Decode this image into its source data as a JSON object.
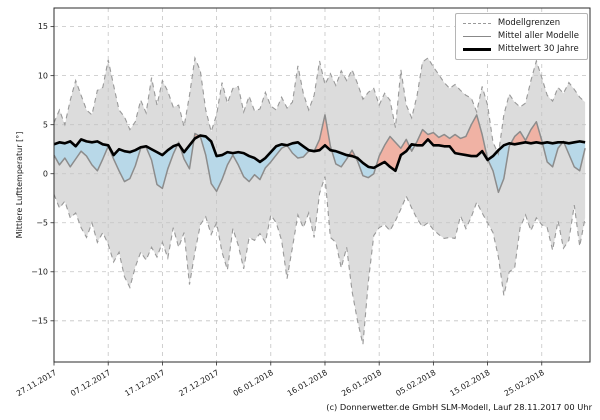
{
  "page": {
    "background": "#ffffff"
  },
  "caption": "(c) Donnerwetter.de GmbH SLM-Modell, Lauf 28.11.2017 00 Uhr",
  "chart_data": {
    "type": "line",
    "title": "",
    "xlabel": "",
    "ylabel": "Mittlere Lufttemperatur [°]",
    "ylim": [
      -19.2,
      16.9
    ],
    "xlim_days": [
      0,
      98.9
    ],
    "yticks": [
      15,
      10,
      5,
      0,
      -5,
      -10,
      -15
    ],
    "xticks": [
      {
        "day": 0,
        "label": "27.11.2017"
      },
      {
        "day": 10,
        "label": "07.12.2017"
      },
      {
        "day": 20,
        "label": "17.12.2017"
      },
      {
        "day": 30,
        "label": "27.12.2017"
      },
      {
        "day": 40,
        "label": "06.01.2018"
      },
      {
        "day": 50,
        "label": "16.01.2018"
      },
      {
        "day": 60,
        "label": "26.01.2018"
      },
      {
        "day": 70,
        "label": "05.02.2018"
      },
      {
        "day": 80,
        "label": "15.02.2018"
      },
      {
        "day": 90,
        "label": "25.02.2018"
      }
    ],
    "grid": "dashed",
    "legend": {
      "position": "top-right",
      "entries": [
        {
          "label": "Modellgrenzen",
          "style": "dashed-gray"
        },
        {
          "label": "Mittel aller Modelle",
          "style": "solid-gray"
        },
        {
          "label": "Mittelwert 30 Jahre",
          "style": "solid-black-thick"
        }
      ]
    },
    "colors": {
      "band_fill": "#dcdcdc",
      "band_edge": "#999999",
      "above_fill": "#f0b2a4",
      "below_fill": "#b8d8e8",
      "ensemble_line": "#8c8c8c",
      "climate_line": "#000000",
      "grid": "#c4c4c4",
      "spine": "#2b2b2b",
      "tick_text": "#1a1a1a"
    },
    "series": [
      {
        "name": "Modellgrenzen (obere Grenze)",
        "role": "upper",
        "values": [
          5.2,
          6.5,
          5.0,
          7.5,
          9.5,
          8.0,
          6.5,
          6.0,
          8.5,
          8.8,
          11.6,
          9.0,
          6.5,
          5.8,
          4.5,
          5.3,
          7.5,
          6.2,
          9.8,
          7.0,
          9.5,
          8.4,
          6.8,
          7.0,
          4.8,
          8.0,
          11.8,
          10.5,
          6.5,
          4.3,
          6.0,
          9.3,
          7.2,
          8.7,
          8.9,
          6.3,
          7.9,
          6.4,
          6.6,
          8.3,
          6.9,
          6.5,
          7.8,
          6.7,
          7.3,
          11.0,
          8.2,
          6.5,
          8.0,
          11.5,
          9.1,
          10.2,
          9.0,
          10.5,
          9.5,
          10.6,
          9.2,
          7.6,
          8.3,
          8.7,
          7.0,
          8.2,
          7.5,
          4.7,
          10.6,
          7.0,
          5.7,
          8.0,
          11.4,
          11.8,
          10.9,
          10.1,
          9.3,
          8.7,
          9.1,
          8.5,
          8.0,
          7.7,
          6.3,
          8.9,
          7.0,
          3.2,
          2.0,
          6.0,
          8.1,
          7.3,
          6.8,
          7.2,
          9.5,
          11.5,
          9.8,
          8.0,
          7.4,
          8.8,
          8.2,
          9.3,
          8.6,
          7.8,
          7.3
        ]
      },
      {
        "name": "Modellgrenzen (untere Grenze)",
        "role": "lower",
        "values": [
          -2.1,
          -3.5,
          -2.8,
          -4.5,
          -4.0,
          -5.5,
          -6.5,
          -5.0,
          -7.0,
          -6.0,
          -7.2,
          -9.0,
          -8.0,
          -10.5,
          -11.6,
          -9.5,
          -8.0,
          -8.8,
          -7.5,
          -8.5,
          -7.0,
          -8.6,
          -5.5,
          -7.5,
          -6.0,
          -11.3,
          -8.0,
          -5.2,
          -4.4,
          -6.2,
          -5.0,
          -8.0,
          -9.8,
          -5.6,
          -7.3,
          -9.7,
          -6.5,
          -6.8,
          -6.1,
          -7.0,
          -4.2,
          -5.0,
          -6.8,
          -10.7,
          -7.5,
          -4.2,
          -5.5,
          -4.0,
          -6.5,
          -2.0,
          -0.3,
          -6.5,
          -7.0,
          -9.6,
          -7.5,
          -12.0,
          -15.0,
          -17.4,
          -11.0,
          -6.3,
          -5.5,
          -5.2,
          -5.8,
          -4.8,
          -3.6,
          -2.3,
          -3.5,
          -4.6,
          -5.4,
          -5.0,
          -5.7,
          -6.2,
          -6.6,
          -6.5,
          -6.6,
          -4.3,
          -5.6,
          -4.4,
          -2.9,
          -4.0,
          -5.0,
          -6.0,
          -8.5,
          -12.4,
          -10.0,
          -9.6,
          -5.5,
          -4.2,
          -5.8,
          -4.5,
          -5.2,
          -5.5,
          -7.8,
          -4.8,
          -7.6,
          -6.8,
          -3.2,
          -7.4,
          -4.5
        ]
      },
      {
        "name": "Mittel aller Modelle",
        "role": "ensemble_mean",
        "values": [
          1.9,
          0.9,
          1.6,
          0.7,
          1.5,
          2.3,
          1.8,
          0.9,
          0.3,
          1.5,
          2.8,
          1.5,
          0.3,
          -0.8,
          -0.5,
          0.8,
          2.6,
          2.7,
          1.4,
          -1.1,
          -1.5,
          0.5,
          2.0,
          3.2,
          1.5,
          0.5,
          4.1,
          3.8,
          1.9,
          -1.0,
          -1.8,
          -0.6,
          0.9,
          1.9,
          0.9,
          -0.3,
          -0.8,
          -0.1,
          -0.6,
          0.6,
          1.2,
          1.9,
          2.6,
          2.9,
          2.1,
          1.6,
          1.7,
          2.3,
          2.3,
          3.5,
          6.0,
          2.8,
          1.0,
          0.7,
          1.5,
          2.4,
          1.3,
          -0.2,
          -0.4,
          0.0,
          1.8,
          2.9,
          3.8,
          3.2,
          2.6,
          3.5,
          2.3,
          3.3,
          4.5,
          4.0,
          4.2,
          3.7,
          4.0,
          3.6,
          4.0,
          3.6,
          3.8,
          5.0,
          6.0,
          4.0,
          1.5,
          0.3,
          -1.9,
          -0.5,
          2.8,
          3.8,
          4.3,
          3.4,
          4.5,
          5.3,
          3.4,
          1.2,
          0.7,
          2.6,
          3.3,
          2.0,
          0.7,
          0.3,
          2.6
        ]
      },
      {
        "name": "Mittelwert 30 Jahre",
        "role": "climate_mean",
        "values": [
          3.0,
          3.2,
          3.1,
          3.3,
          2.8,
          3.5,
          3.3,
          3.2,
          3.3,
          3.0,
          2.9,
          1.9,
          2.5,
          2.3,
          2.2,
          2.4,
          2.7,
          2.8,
          2.5,
          2.2,
          1.9,
          2.4,
          2.8,
          3.0,
          2.2,
          2.9,
          3.6,
          3.9,
          3.8,
          3.3,
          1.8,
          1.9,
          2.2,
          2.1,
          2.2,
          2.1,
          1.8,
          1.6,
          1.2,
          1.6,
          2.2,
          2.8,
          3.0,
          2.9,
          3.1,
          3.2,
          2.8,
          2.4,
          2.3,
          2.4,
          2.9,
          2.4,
          2.3,
          2.1,
          1.9,
          1.8,
          1.6,
          1.1,
          0.7,
          0.6,
          0.9,
          1.2,
          0.7,
          0.3,
          1.9,
          2.3,
          3.0,
          2.9,
          2.9,
          3.5,
          2.9,
          2.9,
          2.8,
          2.8,
          2.1,
          2.0,
          1.9,
          1.8,
          1.8,
          2.3,
          1.4,
          1.8,
          2.4,
          2.9,
          3.1,
          3.0,
          3.1,
          3.2,
          3.1,
          3.2,
          3.1,
          3.2,
          3.1,
          3.2,
          3.2,
          3.1,
          3.2,
          3.3,
          3.2
        ]
      }
    ]
  }
}
